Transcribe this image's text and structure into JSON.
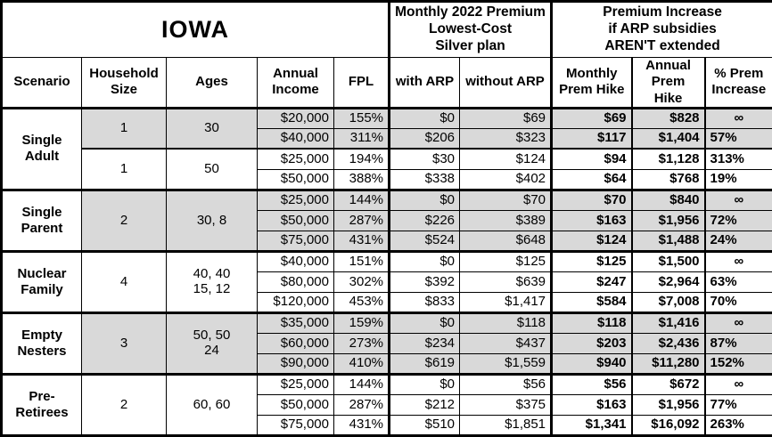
{
  "table": {
    "title": "IOWA",
    "premium_header": "Monthly 2022 Premium\nLowest-Cost\nSilver plan",
    "increase_header": "Premium Increase\nif ARP subsidies\nAREN'T extended",
    "columns": {
      "scenario": "Scenario",
      "household": "Household\nSize",
      "ages": "Ages",
      "income": "Annual\nIncome",
      "fpl": "FPL",
      "with_arp": "with ARP",
      "without_arp": "without ARP",
      "monthly_hike": "Monthly\nPrem Hike",
      "annual_hike": "Annual\nPrem Hike",
      "pct_increase": "% Prem\nIncrease"
    },
    "groups": [
      {
        "scenario": "Single\nAdult",
        "subgroups": [
          {
            "household_size": "1",
            "ages": "30",
            "shaded": true,
            "rows": [
              [
                "$20,000",
                "155%",
                "$0",
                "$69",
                "$69",
                "$828",
                "∞"
              ],
              [
                "$40,000",
                "311%",
                "$206",
                "$323",
                "$117",
                "$1,404",
                "57%"
              ]
            ]
          },
          {
            "household_size": "1",
            "ages": "50",
            "shaded": false,
            "rows": [
              [
                "$25,000",
                "194%",
                "$30",
                "$124",
                "$94",
                "$1,128",
                "313%"
              ],
              [
                "$50,000",
                "388%",
                "$338",
                "$402",
                "$64",
                "$768",
                "19%"
              ]
            ]
          }
        ]
      },
      {
        "scenario": "Single\nParent",
        "subgroups": [
          {
            "household_size": "2",
            "ages": "30, 8",
            "shaded": true,
            "rows": [
              [
                "$25,000",
                "144%",
                "$0",
                "$70",
                "$70",
                "$840",
                "∞"
              ],
              [
                "$50,000",
                "287%",
                "$226",
                "$389",
                "$163",
                "$1,956",
                "72%"
              ],
              [
                "$75,000",
                "431%",
                "$524",
                "$648",
                "$124",
                "$1,488",
                "24%"
              ]
            ]
          }
        ]
      },
      {
        "scenario": "Nuclear\nFamily",
        "subgroups": [
          {
            "household_size": "4",
            "ages": "40, 40\n15, 12",
            "shaded": false,
            "rows": [
              [
                "$40,000",
                "151%",
                "$0",
                "$125",
                "$125",
                "$1,500",
                "∞"
              ],
              [
                "$80,000",
                "302%",
                "$392",
                "$639",
                "$247",
                "$2,964",
                "63%"
              ],
              [
                "$120,000",
                "453%",
                "$833",
                "$1,417",
                "$584",
                "$7,008",
                "70%"
              ]
            ]
          }
        ]
      },
      {
        "scenario": "Empty\nNesters",
        "subgroups": [
          {
            "household_size": "3",
            "ages": "50, 50\n24",
            "shaded": true,
            "rows": [
              [
                "$35,000",
                "159%",
                "$0",
                "$118",
                "$118",
                "$1,416",
                "∞"
              ],
              [
                "$60,000",
                "273%",
                "$234",
                "$437",
                "$203",
                "$2,436",
                "87%"
              ],
              [
                "$90,000",
                "410%",
                "$619",
                "$1,559",
                "$940",
                "$11,280",
                "152%"
              ]
            ]
          }
        ]
      },
      {
        "scenario": "Pre-\nRetirees",
        "subgroups": [
          {
            "household_size": "2",
            "ages": "60, 60",
            "shaded": false,
            "rows": [
              [
                "$25,000",
                "144%",
                "$0",
                "$56",
                "$56",
                "$672",
                "∞"
              ],
              [
                "$50,000",
                "287%",
                "$212",
                "$375",
                "$163",
                "$1,956",
                "77%"
              ],
              [
                "$75,000",
                "431%",
                "$510",
                "$1,851",
                "$1,341",
                "$16,092",
                "263%"
              ]
            ]
          }
        ]
      }
    ]
  },
  "colors": {
    "shaded_row": "#d9d9d9",
    "border": "#000000",
    "background": "#ffffff",
    "text": "#000000"
  },
  "chart_data": {
    "type": "table",
    "title": "IOWA",
    "column_groups": [
      "IOWA",
      "Monthly 2022 Premium Lowest-Cost Silver plan",
      "Premium Increase if ARP subsidies AREN'T extended"
    ],
    "columns": [
      "Scenario",
      "Household Size",
      "Ages",
      "Annual Income",
      "FPL",
      "with ARP",
      "without ARP",
      "Monthly Prem Hike",
      "Annual Prem Hike",
      "% Prem Increase"
    ],
    "rows": [
      [
        "Single Adult",
        "1",
        "30",
        "$20,000",
        "155%",
        "$0",
        "$69",
        "$69",
        "$828",
        "∞"
      ],
      [
        "Single Adult",
        "1",
        "30",
        "$40,000",
        "311%",
        "$206",
        "$323",
        "$117",
        "$1,404",
        "57%"
      ],
      [
        "Single Adult",
        "1",
        "50",
        "$25,000",
        "194%",
        "$30",
        "$124",
        "$94",
        "$1,128",
        "313%"
      ],
      [
        "Single Adult",
        "1",
        "50",
        "$50,000",
        "388%",
        "$338",
        "$402",
        "$64",
        "$768",
        "19%"
      ],
      [
        "Single Parent",
        "2",
        "30, 8",
        "$25,000",
        "144%",
        "$0",
        "$70",
        "$70",
        "$840",
        "∞"
      ],
      [
        "Single Parent",
        "2",
        "30, 8",
        "$50,000",
        "287%",
        "$226",
        "$389",
        "$163",
        "$1,956",
        "72%"
      ],
      [
        "Single Parent",
        "2",
        "30, 8",
        "$75,000",
        "431%",
        "$524",
        "$648",
        "$124",
        "$1,488",
        "24%"
      ],
      [
        "Nuclear Family",
        "4",
        "40, 40, 15, 12",
        "$40,000",
        "151%",
        "$0",
        "$125",
        "$125",
        "$1,500",
        "∞"
      ],
      [
        "Nuclear Family",
        "4",
        "40, 40, 15, 12",
        "$80,000",
        "302%",
        "$392",
        "$639",
        "$247",
        "$2,964",
        "63%"
      ],
      [
        "Nuclear Family",
        "4",
        "40, 40, 15, 12",
        "$120,000",
        "453%",
        "$833",
        "$1,417",
        "$584",
        "$7,008",
        "70%"
      ],
      [
        "Empty Nesters",
        "3",
        "50, 50, 24",
        "$35,000",
        "159%",
        "$0",
        "$118",
        "$118",
        "$1,416",
        "∞"
      ],
      [
        "Empty Nesters",
        "3",
        "50, 50, 24",
        "$60,000",
        "273%",
        "$234",
        "$437",
        "$203",
        "$2,436",
        "87%"
      ],
      [
        "Empty Nesters",
        "3",
        "50, 50, 24",
        "$90,000",
        "410%",
        "$619",
        "$1,559",
        "$940",
        "$11,280",
        "152%"
      ],
      [
        "Pre-Retirees",
        "2",
        "60, 60",
        "$25,000",
        "144%",
        "$0",
        "$56",
        "$56",
        "$672",
        "∞"
      ],
      [
        "Pre-Retirees",
        "2",
        "60, 60",
        "$50,000",
        "287%",
        "$212",
        "$375",
        "$163",
        "$1,956",
        "77%"
      ],
      [
        "Pre-Retirees",
        "2",
        "60, 60",
        "$75,000",
        "431%",
        "$510",
        "$1,851",
        "$1,341",
        "$16,092",
        "263%"
      ]
    ]
  }
}
